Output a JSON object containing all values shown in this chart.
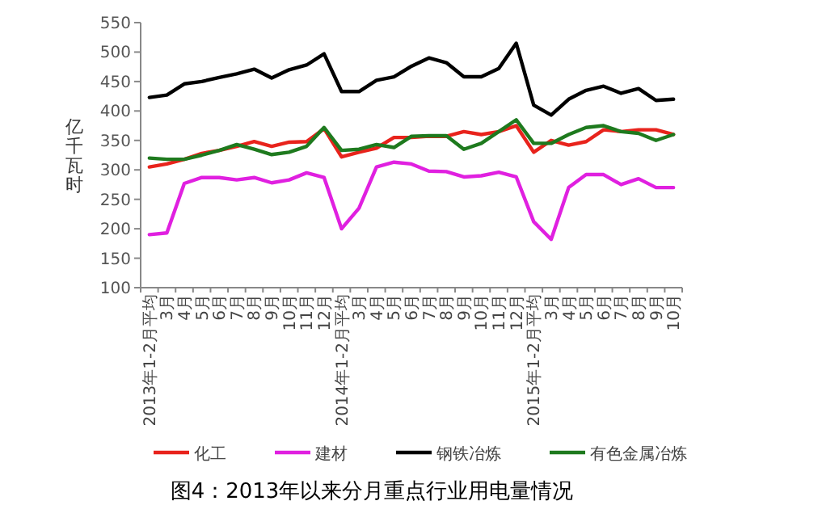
{
  "chart_data": {
    "type": "line",
    "title": "图4：2013年以来分月重点行业用电量情况",
    "ylabel": "亿千瓦时",
    "categories": [
      "2013年1-2月平均",
      "3月",
      "4月",
      "5月",
      "6月",
      "7月",
      "8月",
      "9月",
      "10月",
      "11月",
      "12月",
      "2014年1-2月平均",
      "3月",
      "4月",
      "5月",
      "6月",
      "7月",
      "8月",
      "9月",
      "10月",
      "11月",
      "12月",
      "2015年1-2月平均",
      "3月",
      "4月",
      "5月",
      "6月",
      "7月",
      "8月",
      "9月",
      "10月"
    ],
    "series": [
      {
        "name": "化工",
        "color": "#e8231c",
        "values": [
          305,
          310,
          318,
          328,
          333,
          340,
          348,
          340,
          347,
          348,
          370,
          322,
          330,
          337,
          355,
          355,
          357,
          357,
          365,
          360,
          365,
          375,
          330,
          350,
          342,
          348,
          368,
          365,
          368,
          368,
          360
        ]
      },
      {
        "name": "建材",
        "color": "#e020e0",
        "values": [
          190,
          193,
          277,
          287,
          287,
          283,
          287,
          278,
          283,
          295,
          287,
          200,
          235,
          305,
          313,
          310,
          298,
          297,
          288,
          290,
          296,
          288,
          212,
          182,
          270,
          292,
          292,
          275,
          285,
          270,
          270
        ]
      },
      {
        "name": "钢铁冶炼",
        "color": "#000000",
        "values": [
          423,
          427,
          446,
          450,
          457,
          463,
          471,
          456,
          470,
          478,
          497,
          433,
          433,
          452,
          458,
          476,
          490,
          482,
          458,
          458,
          472,
          515,
          410,
          393,
          420,
          435,
          442,
          430,
          438,
          418,
          420
        ]
      },
      {
        "name": "有色金属冶炼",
        "color": "#1e7a1e",
        "values": [
          320,
          318,
          318,
          325,
          333,
          343,
          335,
          326,
          330,
          340,
          372,
          333,
          335,
          343,
          338,
          357,
          358,
          358,
          335,
          345,
          365,
          385,
          345,
          345,
          360,
          372,
          375,
          365,
          362,
          350,
          360
        ]
      }
    ],
    "ylim": [
      100,
      550
    ],
    "yticks": [
      100,
      150,
      200,
      250,
      300,
      350,
      400,
      450,
      500,
      550
    ],
    "legend": "bottom",
    "line_style": "solid",
    "marker": "none"
  }
}
